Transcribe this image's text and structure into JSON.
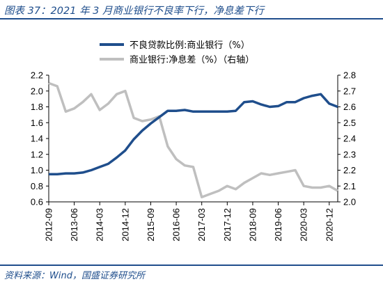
{
  "figure": {
    "title": "图表 37：2021 年 3 月商业银行不良率下行，净息差下行",
    "source": "资料来源：Wind，国盛证券研究所"
  },
  "colors": {
    "npl": "#1f4e8c",
    "nim": "#bfbfbf",
    "accent": "#1f4e8c"
  },
  "chart_data": {
    "type": "line",
    "legend_placement": "top-right",
    "grid": false,
    "x_tick_labels": [
      "2012-09",
      "2013-06",
      "2014-03",
      "2014-12",
      "2015-09",
      "2016-06",
      "2017-03",
      "2017-12",
      "2018-09",
      "2019-06",
      "2020-03",
      "2020-12"
    ],
    "x": [
      "2012-09",
      "2012-12",
      "2013-03",
      "2013-06",
      "2013-09",
      "2013-12",
      "2014-03",
      "2014-06",
      "2014-09",
      "2014-12",
      "2015-03",
      "2015-06",
      "2015-09",
      "2015-12",
      "2016-03",
      "2016-06",
      "2016-09",
      "2016-12",
      "2017-03",
      "2017-06",
      "2017-09",
      "2017-12",
      "2018-03",
      "2018-06",
      "2018-09",
      "2018-12",
      "2019-03",
      "2019-06",
      "2019-09",
      "2019-12",
      "2020-03",
      "2020-06",
      "2020-09",
      "2020-12",
      "2021-03"
    ],
    "y_left": {
      "min": 0.6,
      "max": 2.2,
      "ticks": [
        "0.6",
        "0.8",
        "1.0",
        "1.2",
        "1.4",
        "1.6",
        "1.8",
        "2.0",
        "2.2"
      ]
    },
    "y_right": {
      "min": 2.0,
      "max": 2.8,
      "ticks": [
        "2.0",
        "2.1",
        "2.2",
        "2.3",
        "2.4",
        "2.5",
        "2.6",
        "2.7",
        "2.8"
      ]
    },
    "series": [
      {
        "name": "不良贷款比例:商业银行（%）",
        "axis": "left",
        "values": [
          0.95,
          0.95,
          0.96,
          0.96,
          0.97,
          1.0,
          1.04,
          1.08,
          1.16,
          1.25,
          1.39,
          1.5,
          1.59,
          1.67,
          1.75,
          1.75,
          1.76,
          1.74,
          1.74,
          1.74,
          1.74,
          1.74,
          1.75,
          1.86,
          1.87,
          1.83,
          1.8,
          1.81,
          1.86,
          1.86,
          1.91,
          1.94,
          1.96,
          1.84,
          1.8
        ]
      },
      {
        "name": "商业银行:净息差（%）（右轴）",
        "axis": "right",
        "values": [
          2.75,
          2.73,
          2.57,
          2.59,
          2.63,
          2.68,
          2.58,
          2.62,
          2.68,
          2.7,
          2.53,
          2.51,
          2.52,
          2.54,
          2.35,
          2.27,
          2.23,
          2.22,
          2.03,
          2.05,
          2.07,
          2.1,
          2.08,
          2.12,
          2.15,
          2.18,
          2.17,
          2.18,
          2.19,
          2.2,
          2.1,
          2.09,
          2.09,
          2.1,
          2.07
        ]
      }
    ]
  }
}
